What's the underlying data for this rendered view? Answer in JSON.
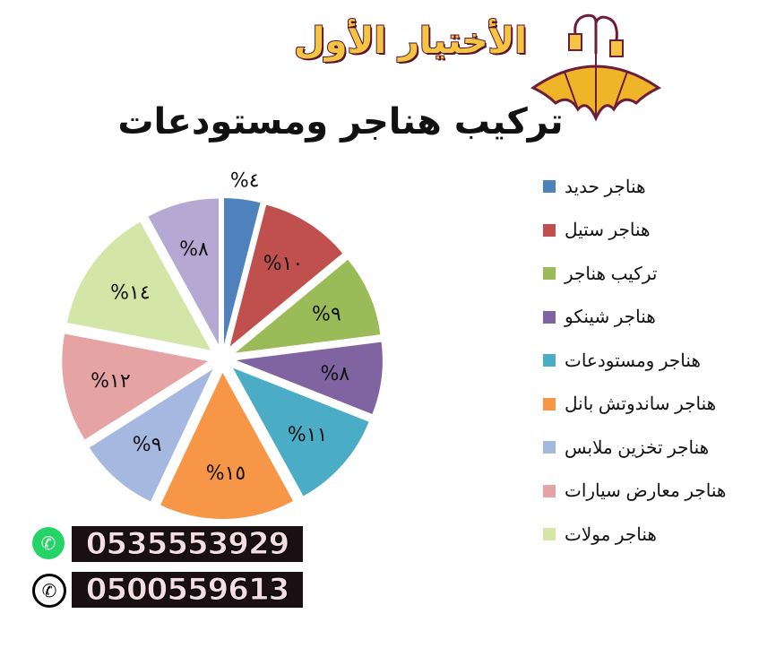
{
  "logo": {
    "text": "الأختيار الأول"
  },
  "title": "تركيب هناجر ومستودعات",
  "chart_data": {
    "type": "pie",
    "exploded": true,
    "title": "تركيب هناجر ومستودعات",
    "legend_position": "right",
    "slices": [
      {
        "name": "هناجر حديد",
        "value": 4,
        "label": "%٤",
        "color": "#4f81bd"
      },
      {
        "name": "هناجر ستيل",
        "value": 10,
        "label": "%١٠",
        "color": "#c0504d"
      },
      {
        "name": "تركيب هناجر",
        "value": 9,
        "label": "%٩",
        "color": "#9bbb59"
      },
      {
        "name": "هناجر شينكو",
        "value": 8,
        "label": "%٨",
        "color": "#8064a2"
      },
      {
        "name": "هناجر ومستودعات",
        "value": 11,
        "label": "%١١",
        "color": "#4bacc6"
      },
      {
        "name": "هناجر ساندوتش بانل",
        "value": 15,
        "label": "%١٥",
        "color": "#f79646"
      },
      {
        "name": "هناجر تخزين ملابس",
        "value": 9,
        "label": "%٩",
        "color": "#a5b9e0"
      },
      {
        "name": "هناجر معارض سيارات",
        "value": 12,
        "label": "%١٢",
        "color": "#e6a3a3"
      },
      {
        "name": "هناجر مولات",
        "value": 14,
        "label": "%١٤",
        "color": "#d3e6a8"
      },
      {
        "name": "",
        "value": 8,
        "label": "%٨",
        "color": "#b5a8d3"
      }
    ]
  },
  "contacts": {
    "whatsapp": "0535553929",
    "phone": "0500559613",
    "whatsapp_icon": "whatsapp-icon",
    "phone_icon": "phone-icon"
  }
}
